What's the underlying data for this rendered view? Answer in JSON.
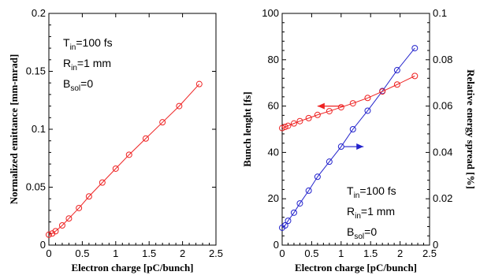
{
  "chart_data": [
    {
      "type": "line",
      "xlabel": "Electron charge [pC/bunch]",
      "ylabel": "Normalized emittance [mm-mrad]",
      "xlim": [
        0,
        2.5
      ],
      "ylim": [
        0,
        0.2
      ],
      "xticks": [
        "0",
        "0.5",
        "1",
        "1.5",
        "2",
        "2.5"
      ],
      "yticks": [
        "0",
        "0.05",
        "0.1",
        "0.15",
        "0.2"
      ],
      "grid": false,
      "annotations": [
        {
          "base": "T",
          "sub": "in",
          "rest": "=100 fs"
        },
        {
          "base": "R",
          "sub": "in",
          "rest": "=1 mm"
        },
        {
          "base": "B",
          "sub": "sol",
          "rest": "=0"
        }
      ],
      "series": [
        {
          "color": "#ee2222",
          "marker": "circle",
          "x": [
            0.0,
            0.05,
            0.1,
            0.2,
            0.3,
            0.45,
            0.6,
            0.8,
            1.0,
            1.2,
            1.45,
            1.7,
            1.95,
            2.25
          ],
          "y": [
            0.009,
            0.01,
            0.012,
            0.017,
            0.023,
            0.032,
            0.042,
            0.054,
            0.066,
            0.078,
            0.092,
            0.106,
            0.12,
            0.139
          ]
        }
      ]
    },
    {
      "type": "line",
      "xlabel": "Electron charge [pC/bunch]",
      "ylabel": "Bunch lenght [fs]",
      "y2label": "Relative energy spread [%]",
      "xlim": [
        0,
        2.5
      ],
      "ylim": [
        0,
        100
      ],
      "y2lim": [
        0,
        0.1
      ],
      "xticks": [
        "0",
        "0.5",
        "1",
        "1.5",
        "2",
        "2.5"
      ],
      "yticks": [
        "0",
        "20",
        "40",
        "60",
        "80",
        "100"
      ],
      "y2ticks": [
        "0",
        "0.02",
        "0.04",
        "0.06",
        "0.08",
        "0.1"
      ],
      "grid": false,
      "annotations": [
        {
          "base": "T",
          "sub": "in",
          "rest": "=100 fs"
        },
        {
          "base": "R",
          "sub": "in",
          "rest": "=1 mm"
        },
        {
          "base": "B",
          "sub": "sol",
          "rest": "=0"
        }
      ],
      "series": [
        {
          "axis": "left",
          "color": "#2222cc",
          "marker": "circle",
          "x": [
            0.0,
            0.05,
            0.1,
            0.2,
            0.3,
            0.45,
            0.6,
            0.8,
            1.0,
            1.2,
            1.45,
            1.7,
            1.95,
            2.25
          ],
          "y": [
            7.5,
            8.5,
            10.5,
            14,
            18,
            23.5,
            29.5,
            36,
            42.5,
            50,
            58,
            66.5,
            75.5,
            85
          ]
        },
        {
          "axis": "right",
          "color": "#ee2222",
          "marker": "circle",
          "x": [
            0.0,
            0.05,
            0.1,
            0.2,
            0.3,
            0.45,
            0.6,
            0.8,
            1.0,
            1.2,
            1.45,
            1.7,
            1.95,
            2.25
          ],
          "y": [
            0.0505,
            0.051,
            0.0515,
            0.0525,
            0.0535,
            0.0548,
            0.0562,
            0.0578,
            0.0595,
            0.0612,
            0.0635,
            0.0663,
            0.0693,
            0.073
          ]
        }
      ],
      "arrows": [
        {
          "color": "#ee2222",
          "direction": "left",
          "x_from": 1.05,
          "x_to": 0.6,
          "y": 60,
          "axis": "left"
        },
        {
          "color": "#2222cc",
          "direction": "right",
          "x_from": 1.05,
          "x_to": 1.38,
          "y": 42.5,
          "axis": "left"
        }
      ]
    }
  ]
}
